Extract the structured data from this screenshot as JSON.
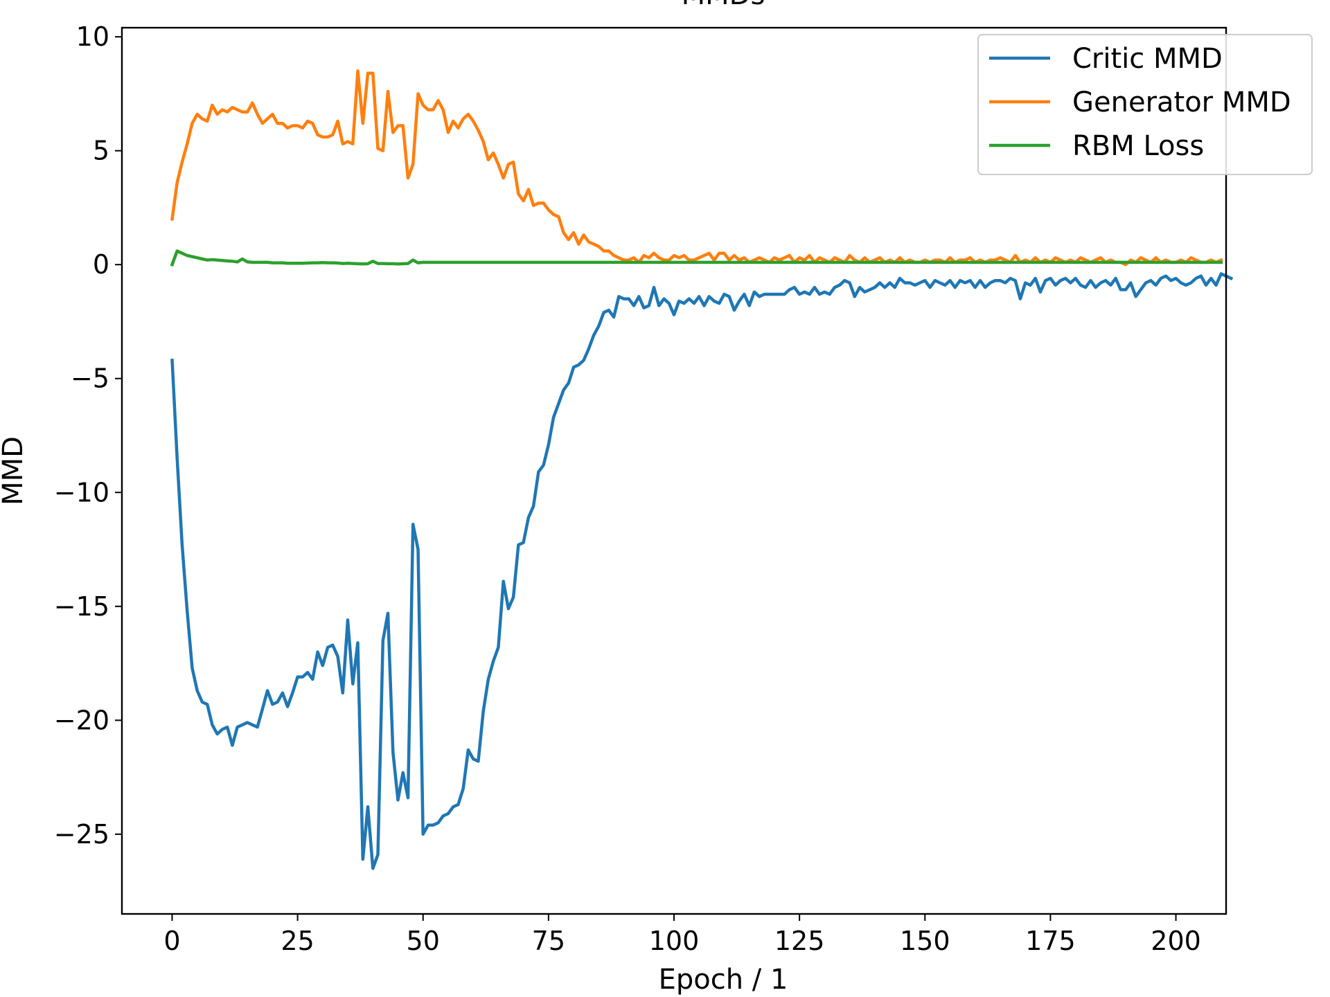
{
  "chart_data": {
    "type": "line",
    "title": "MMDs",
    "xlabel": "Epoch / 1",
    "ylabel": "MMD",
    "xlim": [
      -10,
      210
    ],
    "ylim": [
      -28.5,
      10.4
    ],
    "xticks": [
      0,
      25,
      50,
      75,
      100,
      125,
      150,
      175,
      200
    ],
    "xtick_labels": [
      "0",
      "25",
      "50",
      "75",
      "100",
      "125",
      "150",
      "175",
      "200"
    ],
    "yticks": [
      10,
      5,
      0,
      -5,
      -10,
      -15,
      -20,
      -25
    ],
    "ytick_labels": [
      "10",
      "5",
      "0",
      "−5",
      "−10",
      "−15",
      "−20",
      "−25"
    ],
    "grid": false,
    "legend_position": "upper right",
    "series": [
      {
        "name": "Critic MMD",
        "color": "#1f77b4",
        "values": [
          -4.2,
          -8.5,
          -12.3,
          -15.2,
          -17.7,
          -18.7,
          -19.2,
          -19.3,
          -20.2,
          -20.6,
          -20.4,
          -20.3,
          -21.1,
          -20.3,
          -20.2,
          -20.1,
          -20.2,
          -20.3,
          -19.5,
          -18.7,
          -19.3,
          -19.2,
          -18.8,
          -19.4,
          -18.8,
          -18.1,
          -18.1,
          -17.9,
          -18.2,
          -17.0,
          -17.6,
          -16.8,
          -16.7,
          -17.2,
          -18.8,
          -15.6,
          -18.4,
          -16.6,
          -26.1,
          -23.8,
          -26.5,
          -25.9,
          -16.5,
          -15.3,
          -21.4,
          -23.5,
          -22.3,
          -23.4,
          -11.4,
          -12.5,
          -25.0,
          -24.6,
          -24.6,
          -24.5,
          -24.2,
          -24.1,
          -23.8,
          -23.7,
          -23.0,
          -21.3,
          -21.7,
          -21.8,
          -19.6,
          -18.2,
          -17.4,
          -16.8,
          -13.9,
          -15.1,
          -14.6,
          -12.3,
          -12.2,
          -11.1,
          -10.6,
          -9.1,
          -8.8,
          -7.9,
          -6.7,
          -6.1,
          -5.5,
          -5.2,
          -4.5,
          -4.4,
          -4.2,
          -3.7,
          -3.1,
          -2.7,
          -2.1,
          -2.0,
          -2.3,
          -1.4,
          -1.5,
          -1.5,
          -1.8,
          -1.4,
          -1.9,
          -1.8,
          -1.0,
          -1.8,
          -1.5,
          -1.7,
          -2.2,
          -1.6,
          -1.7,
          -1.5,
          -1.7,
          -1.4,
          -1.8,
          -1.4,
          -1.6,
          -1.7,
          -1.3,
          -1.4,
          -2.0,
          -1.6,
          -1.3,
          -1.8,
          -1.2,
          -1.4,
          -1.3,
          -1.3,
          -1.3,
          -1.3,
          -1.3,
          -1.1,
          -1.0,
          -1.3,
          -1.2,
          -1.3,
          -1.0,
          -1.3,
          -1.2,
          -1.3,
          -1.0,
          -0.9,
          -0.7,
          -0.8,
          -1.4,
          -1.0,
          -1.2,
          -1.1,
          -1.0,
          -0.8,
          -1.0,
          -0.8,
          -1.0,
          -0.6,
          -0.8,
          -0.8,
          -0.9,
          -0.8,
          -0.7,
          -1.0,
          -0.7,
          -0.8,
          -0.9,
          -0.7,
          -1.0,
          -0.7,
          -0.8,
          -0.7,
          -1.0,
          -0.7,
          -1.0,
          -0.8,
          -0.7,
          -0.7,
          -0.8,
          -0.6,
          -0.7,
          -1.5,
          -0.8,
          -0.9,
          -0.6,
          -1.2,
          -0.7,
          -0.6,
          -0.9,
          -0.7,
          -0.6,
          -0.8,
          -0.6,
          -0.9,
          -1.0,
          -0.7,
          -1.0,
          -0.8,
          -0.7,
          -0.9,
          -0.6,
          -1.1,
          -1.1,
          -0.8,
          -1.4,
          -1.1,
          -0.8,
          -0.7,
          -0.9,
          -0.6,
          -0.5,
          -0.7,
          -0.6,
          -0.8,
          -0.9,
          -0.8,
          -0.6,
          -0.5,
          -0.9,
          -0.6,
          -0.9,
          -0.4,
          -0.5,
          -0.6
        ]
      },
      {
        "name": "Generator MMD",
        "color": "#ff7f0e",
        "values": [
          2.0,
          3.6,
          4.5,
          5.3,
          6.2,
          6.6,
          6.4,
          6.3,
          7.0,
          6.6,
          6.8,
          6.7,
          6.9,
          6.8,
          6.7,
          6.7,
          7.1,
          6.6,
          6.2,
          6.4,
          6.6,
          6.2,
          6.2,
          6.0,
          6.1,
          6.1,
          6.0,
          6.3,
          6.2,
          5.7,
          5.6,
          5.6,
          5.7,
          6.3,
          5.3,
          5.4,
          5.3,
          8.5,
          6.2,
          8.4,
          8.4,
          5.1,
          5.0,
          7.6,
          5.8,
          6.1,
          6.1,
          3.8,
          4.4,
          7.5,
          7.0,
          6.8,
          6.8,
          7.2,
          6.8,
          5.8,
          6.3,
          6.0,
          6.4,
          6.6,
          6.3,
          5.9,
          5.4,
          4.6,
          4.9,
          4.4,
          3.8,
          4.4,
          4.5,
          3.1,
          2.8,
          3.3,
          2.6,
          2.7,
          2.7,
          2.4,
          2.2,
          2.1,
          1.4,
          1.1,
          1.4,
          0.9,
          1.3,
          1.0,
          0.9,
          0.8,
          0.6,
          0.6,
          0.4,
          0.3,
          0.2,
          0.2,
          0.3,
          0.1,
          0.4,
          0.3,
          0.5,
          0.3,
          0.2,
          0.2,
          0.4,
          0.3,
          0.4,
          0.2,
          0.2,
          0.3,
          0.4,
          0.5,
          0.2,
          0.5,
          0.5,
          0.2,
          0.4,
          0.2,
          0.3,
          0.1,
          0.2,
          0.3,
          0.2,
          0.1,
          0.3,
          0.2,
          0.3,
          0.4,
          0.1,
          0.3,
          0.2,
          0.4,
          0.1,
          0.3,
          0.2,
          0.1,
          0.3,
          0.2,
          0.1,
          0.4,
          0.2,
          0.1,
          0.3,
          0.1,
          0.2,
          0.3,
          0.1,
          0.2,
          0.1,
          0.3,
          0.1,
          0.2,
          0.1,
          0.1,
          0.2,
          0.1,
          0.2,
          0.2,
          0.1,
          0.3,
          0.1,
          0.2,
          0.2,
          0.3,
          0.1,
          0.2,
          0.1,
          0.2,
          0.2,
          0.3,
          0.2,
          0.1,
          0.4,
          0.1,
          0.2,
          0.1,
          0.3,
          0.1,
          0.2,
          0.1,
          0.3,
          0.2,
          0.1,
          0.2,
          0.1,
          0.3,
          0.2,
          0.1,
          0.2,
          0.3,
          0.1,
          0.2,
          0.1,
          0.1,
          0.0,
          0.2,
          0.1,
          0.3,
          0.2,
          0.1,
          0.3,
          0.1,
          0.2,
          0.1,
          0.1,
          0.2,
          0.1,
          0.3,
          0.2,
          0.1,
          0.1,
          0.2,
          0.1,
          0.2
        ]
      },
      {
        "name": "RBM Loss",
        "color": "#2ca02c",
        "values": [
          0.0,
          0.6,
          0.5,
          0.4,
          0.35,
          0.3,
          0.25,
          0.2,
          0.22,
          0.2,
          0.18,
          0.16,
          0.15,
          0.12,
          0.25,
          0.12,
          0.1,
          0.1,
          0.1,
          0.1,
          0.08,
          0.08,
          0.08,
          0.06,
          0.06,
          0.06,
          0.06,
          0.07,
          0.08,
          0.08,
          0.09,
          0.08,
          0.08,
          0.07,
          0.05,
          0.06,
          0.05,
          0.04,
          0.03,
          0.04,
          0.15,
          0.05,
          0.05,
          0.04,
          0.04,
          0.03,
          0.04,
          0.05,
          0.2,
          0.08,
          0.1,
          0.1,
          0.1,
          0.1,
          0.1,
          0.1,
          0.1,
          0.1,
          0.1,
          0.1,
          0.1,
          0.1,
          0.1,
          0.1,
          0.1,
          0.1,
          0.1,
          0.1,
          0.1,
          0.1,
          0.1,
          0.1,
          0.1,
          0.1,
          0.1,
          0.1,
          0.1,
          0.1,
          0.1,
          0.1,
          0.1,
          0.1,
          0.1,
          0.1,
          0.1,
          0.1,
          0.1,
          0.1,
          0.1,
          0.1,
          0.1,
          0.1,
          0.1,
          0.1,
          0.1,
          0.1,
          0.1,
          0.1,
          0.1,
          0.1,
          0.1,
          0.1,
          0.1,
          0.1,
          0.1,
          0.1,
          0.1,
          0.1,
          0.1,
          0.1,
          0.1,
          0.1,
          0.1,
          0.1,
          0.1,
          0.1,
          0.1,
          0.1,
          0.1,
          0.1,
          0.1,
          0.1,
          0.1,
          0.1,
          0.1,
          0.1,
          0.1,
          0.1,
          0.1,
          0.1,
          0.1,
          0.1,
          0.1,
          0.1,
          0.1,
          0.1,
          0.1,
          0.1,
          0.1,
          0.1,
          0.1,
          0.1,
          0.1,
          0.1,
          0.1,
          0.1,
          0.1,
          0.1,
          0.1,
          0.1,
          0.1,
          0.1,
          0.1,
          0.1,
          0.1,
          0.1,
          0.1,
          0.1,
          0.1,
          0.1,
          0.1,
          0.1,
          0.1,
          0.1,
          0.1,
          0.1,
          0.1,
          0.1,
          0.1,
          0.1,
          0.1,
          0.1,
          0.1,
          0.1,
          0.1,
          0.1,
          0.1,
          0.1,
          0.1,
          0.1,
          0.1,
          0.1,
          0.1,
          0.1,
          0.1,
          0.1,
          0.1,
          0.1,
          0.1,
          0.1,
          0.1,
          0.1,
          0.1,
          0.1,
          0.1,
          0.1,
          0.1,
          0.1,
          0.1,
          0.1,
          0.1,
          0.1,
          0.1,
          0.1,
          0.1,
          0.1,
          0.1,
          0.1,
          0.1,
          0.1
        ]
      }
    ]
  }
}
